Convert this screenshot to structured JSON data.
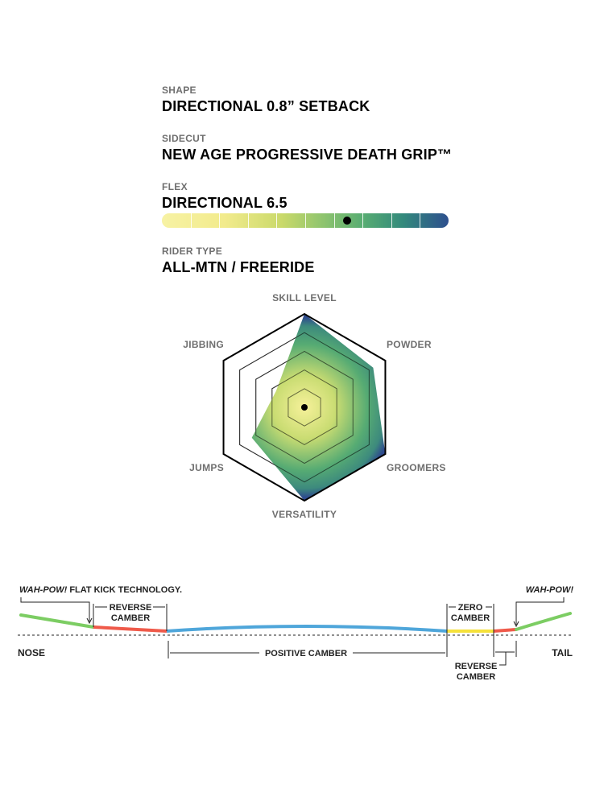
{
  "specs": {
    "shape": {
      "label": "SHAPE",
      "value": "DIRECTIONAL 0.8” SETBACK"
    },
    "sidecut": {
      "label": "SIDECUT",
      "value": "NEW AGE PROGRESSIVE DEATH GRIP™"
    },
    "flex": {
      "label": "FLEX",
      "value": "DIRECTIONAL 6.5",
      "rating": 6.5,
      "scale_max": 10
    },
    "rider_type": {
      "label": "RIDER TYPE",
      "value": "ALL-MTN / FREERIDE"
    }
  },
  "radar": {
    "axes": [
      {
        "label": "SKILL LEVEL",
        "value": 1.0
      },
      {
        "label": "POWDER",
        "value": 0.85
      },
      {
        "label": "GROOMERS",
        "value": 1.0
      },
      {
        "label": "VERSATILITY",
        "value": 1.0
      },
      {
        "label": "JUMPS",
        "value": 0.65
      },
      {
        "label": "JIBBING",
        "value": 0.35
      }
    ],
    "rings": 4,
    "colors": {
      "center": "#f6f19a",
      "mid": "#56ab73",
      "edge": "#2e4a8e"
    }
  },
  "profile": {
    "nose_label": "NOSE",
    "tail_label": "TAIL",
    "wahpow_left_italic": "WAH-POW!",
    "wahpow_left_rest": " FLAT KICK TECHNOLOGY.",
    "wahpow_right": "WAH-POW!",
    "reverse_camber_left": [
      "REVERSE",
      "CAMBER"
    ],
    "positive_camber": "POSITIVE CAMBER",
    "zero_camber": [
      "ZERO",
      "CAMBER"
    ],
    "reverse_camber_right": [
      "REVERSE",
      "CAMBER"
    ],
    "colors": {
      "flat_kick": "#7ccd63",
      "reverse": "#ef5a4a",
      "positive": "#4fa6da",
      "zero": "#f5e13a"
    }
  }
}
